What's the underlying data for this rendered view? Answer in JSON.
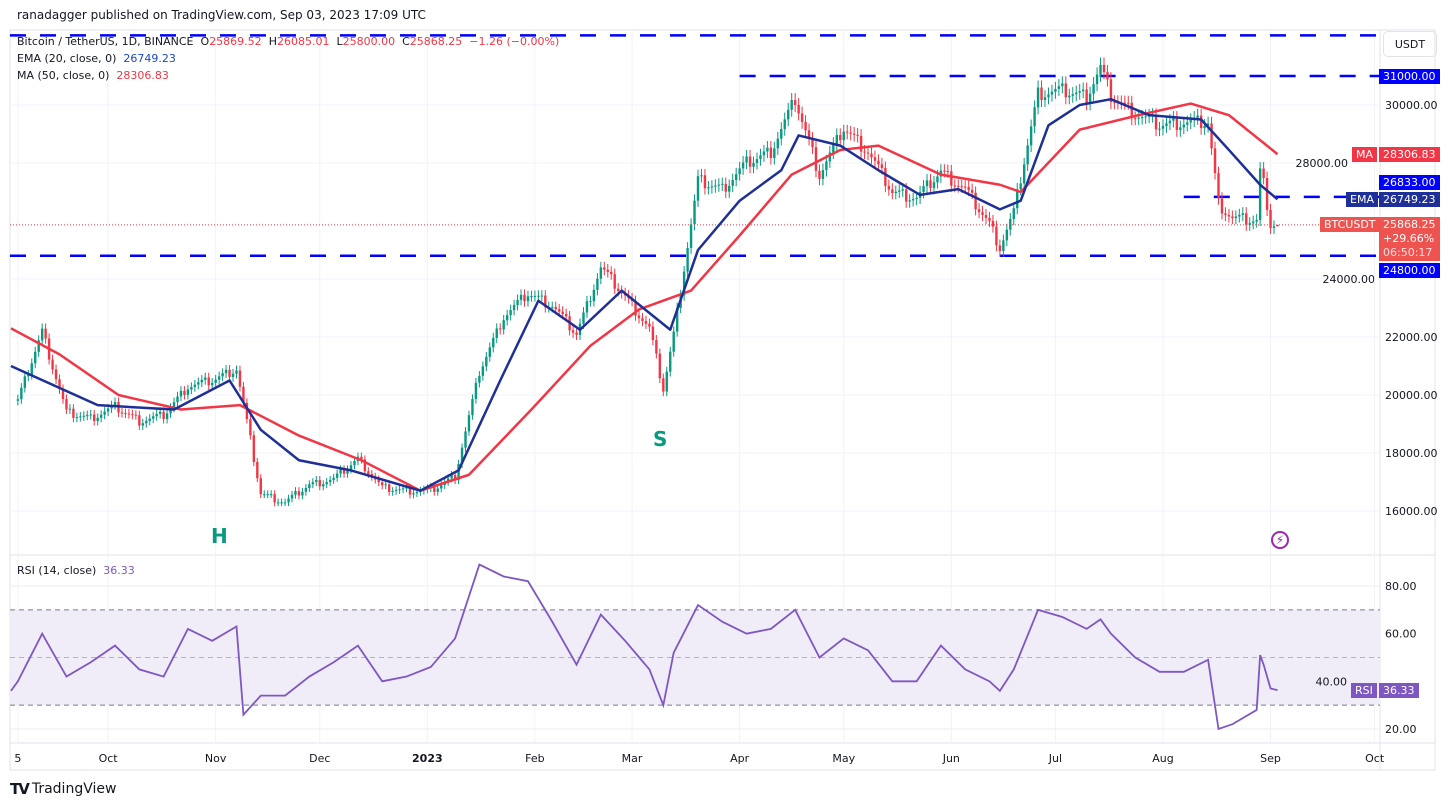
{
  "header": {
    "published": "ranadagger published on TradingView.com, Sep 03, 2023 17:09 UTC"
  },
  "legend": {
    "symbol": "Bitcoin / TetherUS, 1D, BINANCE",
    "o_label": "O",
    "o": "25869.52",
    "h_label": "H",
    "h": "26085.01",
    "l_label": "L",
    "l": "25800.00",
    "c_label": "C",
    "c": "25868.25",
    "change": "−1.26 (−0.00%)",
    "ema_label": "EMA (20, close, 0)",
    "ema": "26749.23",
    "ma_label": "MA (50, close, 0)",
    "ma": "28306.83",
    "rsi_label": "RSI (14, close)",
    "rsi": "36.33"
  },
  "currency": "USDT",
  "tags": {
    "r31000": "31000.00",
    "ma_name": "MA",
    "ma_val": "28306.83",
    "r26833": "26833.00",
    "ema_name": "EMA",
    "ema_val": "26749.23",
    "sym": "BTCUSDT",
    "price": "25868.25",
    "pct": "+29.66%",
    "countdown": "06:50:17",
    "r24800": "24800.00",
    "rsi_name": "RSI",
    "rsi_val": "36.33"
  },
  "annotations": {
    "h": "H",
    "s": "S"
  },
  "footer": {
    "brand": "TradingView"
  },
  "colors": {
    "up": "#089981",
    "down": "#f23645",
    "ema": "#1e2f97",
    "ma": "#f23645",
    "rsi": "#7e57c2",
    "levels": "#0000ff",
    "rsi_band": "#f0ecf8"
  },
  "chart_data": {
    "type": "candlestick",
    "ylim": [
      15000,
      32600
    ],
    "yticks": [
      16000,
      18000,
      20000,
      22000,
      24000,
      28000,
      30000
    ],
    "xticks": [
      {
        "date": "2022-09-05",
        "label": "5"
      },
      {
        "date": "2022-10-01",
        "label": "Oct"
      },
      {
        "date": "2022-11-01",
        "label": "Nov"
      },
      {
        "date": "2022-12-01",
        "label": "Dec"
      },
      {
        "date": "2023-01-01",
        "label": "2023"
      },
      {
        "date": "2023-02-01",
        "label": "Feb"
      },
      {
        "date": "2023-03-01",
        "label": "Mar"
      },
      {
        "date": "2023-04-01",
        "label": "Apr"
      },
      {
        "date": "2023-05-01",
        "label": "May"
      },
      {
        "date": "2023-06-01",
        "label": "Jun"
      },
      {
        "date": "2023-07-01",
        "label": "Jul"
      },
      {
        "date": "2023-08-01",
        "label": "Aug"
      },
      {
        "date": "2023-09-01",
        "label": "Sep"
      },
      {
        "date": "2023-10-01",
        "label": "Oct"
      }
    ],
    "close": [
      [
        "2022-09-05",
        19800
      ],
      [
        "2022-09-12",
        22200
      ],
      [
        "2022-09-19",
        19400
      ],
      [
        "2022-09-26",
        19200
      ],
      [
        "2022-10-03",
        19600
      ],
      [
        "2022-10-10",
        19100
      ],
      [
        "2022-10-17",
        19300
      ],
      [
        "2022-10-24",
        20300
      ],
      [
        "2022-10-31",
        20500
      ],
      [
        "2022-11-07",
        20900
      ],
      [
        "2022-11-14",
        16600
      ],
      [
        "2022-11-21",
        16300
      ],
      [
        "2022-11-28",
        16900
      ],
      [
        "2022-12-05",
        17100
      ],
      [
        "2022-12-12",
        17800
      ],
      [
        "2022-12-19",
        16800
      ],
      [
        "2022-12-26",
        16700
      ],
      [
        "2023-01-02",
        16700
      ],
      [
        "2023-01-09",
        17200
      ],
      [
        "2023-01-16",
        20800
      ],
      [
        "2023-01-23",
        22700
      ],
      [
        "2023-01-30",
        23500
      ],
      [
        "2023-02-06",
        23100
      ],
      [
        "2023-02-13",
        22100
      ],
      [
        "2023-02-20",
        24400
      ],
      [
        "2023-02-27",
        23400
      ],
      [
        "2023-03-06",
        22300
      ],
      [
        "2023-03-10",
        20200
      ],
      [
        "2023-03-13",
        22100
      ],
      [
        "2023-03-20",
        27400
      ],
      [
        "2023-03-27",
        27100
      ],
      [
        "2023-04-03",
        28000
      ],
      [
        "2023-04-10",
        28400
      ],
      [
        "2023-04-17",
        30200
      ],
      [
        "2023-04-24",
        27600
      ],
      [
        "2023-05-01",
        29200
      ],
      [
        "2023-05-08",
        28400
      ],
      [
        "2023-05-15",
        27000
      ],
      [
        "2023-05-22",
        26800
      ],
      [
        "2023-05-29",
        27700
      ],
      [
        "2023-06-05",
        27100
      ],
      [
        "2023-06-12",
        25900
      ],
      [
        "2023-06-15",
        25100
      ],
      [
        "2023-06-19",
        26300
      ],
      [
        "2023-06-26",
        30400
      ],
      [
        "2023-07-03",
        30500
      ],
      [
        "2023-07-10",
        30300
      ],
      [
        "2023-07-14",
        31300
      ],
      [
        "2023-07-17",
        30300
      ],
      [
        "2023-07-24",
        29700
      ],
      [
        "2023-07-31",
        29300
      ],
      [
        "2023-08-07",
        29400
      ],
      [
        "2023-08-14",
        29400
      ],
      [
        "2023-08-17",
        26600
      ],
      [
        "2023-08-21",
        26100
      ],
      [
        "2023-08-28",
        26000
      ],
      [
        "2023-08-29",
        27700
      ],
      [
        "2023-08-30",
        27300
      ],
      [
        "2023-09-01",
        25900
      ],
      [
        "2023-09-03",
        25868.25
      ]
    ],
    "ema20": [
      [
        "2022-09-03",
        21000
      ],
      [
        "2022-09-28",
        19650
      ],
      [
        "2022-10-20",
        19500
      ],
      [
        "2022-11-05",
        20500
      ],
      [
        "2022-11-14",
        18800
      ],
      [
        "2022-11-25",
        17750
      ],
      [
        "2022-12-10",
        17400
      ],
      [
        "2022-12-30",
        16700
      ],
      [
        "2023-01-10",
        17400
      ],
      [
        "2023-01-22",
        20500
      ],
      [
        "2023-02-02",
        23250
      ],
      [
        "2023-02-14",
        22250
      ],
      [
        "2023-02-26",
        23600
      ],
      [
        "2023-03-12",
        22250
      ],
      [
        "2023-03-20",
        25000
      ],
      [
        "2023-04-01",
        26700
      ],
      [
        "2023-04-13",
        27750
      ],
      [
        "2023-04-18",
        28950
      ],
      [
        "2023-04-30",
        28600
      ],
      [
        "2023-05-11",
        27750
      ],
      [
        "2023-05-23",
        26900
      ],
      [
        "2023-06-03",
        27100
      ],
      [
        "2023-06-15",
        26400
      ],
      [
        "2023-06-21",
        26700
      ],
      [
        "2023-06-29",
        29300
      ],
      [
        "2023-07-08",
        30000
      ],
      [
        "2023-07-17",
        30200
      ],
      [
        "2023-07-28",
        29650
      ],
      [
        "2023-08-12",
        29500
      ],
      [
        "2023-08-20",
        28450
      ],
      [
        "2023-08-29",
        27250
      ],
      [
        "2023-09-03",
        26749.23
      ]
    ],
    "ma50": [
      [
        "2022-09-03",
        22300
      ],
      [
        "2022-09-17",
        21400
      ],
      [
        "2022-10-04",
        20000
      ],
      [
        "2022-10-22",
        19500
      ],
      [
        "2022-11-08",
        19650
      ],
      [
        "2022-11-25",
        18600
      ],
      [
        "2022-12-13",
        17750
      ],
      [
        "2022-12-30",
        16700
      ],
      [
        "2023-01-13",
        17250
      ],
      [
        "2023-01-31",
        19500
      ],
      [
        "2023-02-17",
        21700
      ],
      [
        "2023-03-03",
        22950
      ],
      [
        "2023-03-18",
        23600
      ],
      [
        "2023-04-01",
        25500
      ],
      [
        "2023-04-16",
        27600
      ],
      [
        "2023-04-30",
        28450
      ],
      [
        "2023-05-11",
        28600
      ],
      [
        "2023-05-29",
        27600
      ],
      [
        "2023-06-15",
        27250
      ],
      [
        "2023-06-21",
        27000
      ],
      [
        "2023-07-08",
        29150
      ],
      [
        "2023-07-25",
        29650
      ],
      [
        "2023-08-09",
        30050
      ],
      [
        "2023-08-20",
        29650
      ],
      [
        "2023-09-03",
        28306.83
      ]
    ],
    "levels": [
      {
        "value": 32400,
        "from": "2022-09-01"
      },
      {
        "value": 31000,
        "from": "2023-04-01"
      },
      {
        "value": 26833,
        "from": "2023-08-07"
      },
      {
        "value": 24800,
        "from": "2022-09-01"
      }
    ],
    "rsi": {
      "ylim": [
        15,
        92
      ],
      "yticks": [
        20,
        40,
        60,
        80
      ],
      "bands": [
        30,
        50,
        70
      ],
      "values": [
        [
          "2022-09-03",
          36
        ],
        [
          "2022-09-05",
          40
        ],
        [
          "2022-09-12",
          60
        ],
        [
          "2022-09-19",
          42
        ],
        [
          "2022-09-26",
          48
        ],
        [
          "2022-10-03",
          55
        ],
        [
          "2022-10-10",
          45
        ],
        [
          "2022-10-17",
          42
        ],
        [
          "2022-10-24",
          62
        ],
        [
          "2022-10-31",
          57
        ],
        [
          "2022-11-07",
          63
        ],
        [
          "2022-11-09",
          26
        ],
        [
          "2022-11-14",
          34
        ],
        [
          "2022-11-21",
          34
        ],
        [
          "2022-11-28",
          42
        ],
        [
          "2022-12-05",
          48
        ],
        [
          "2022-12-12",
          55
        ],
        [
          "2022-12-19",
          40
        ],
        [
          "2022-12-26",
          42
        ],
        [
          "2023-01-02",
          46
        ],
        [
          "2023-01-09",
          58
        ],
        [
          "2023-01-16",
          89
        ],
        [
          "2023-01-23",
          84
        ],
        [
          "2023-01-30",
          82
        ],
        [
          "2023-02-06",
          65
        ],
        [
          "2023-02-13",
          47
        ],
        [
          "2023-02-20",
          68
        ],
        [
          "2023-02-27",
          57
        ],
        [
          "2023-03-06",
          45
        ],
        [
          "2023-03-10",
          30
        ],
        [
          "2023-03-13",
          52
        ],
        [
          "2023-03-20",
          72
        ],
        [
          "2023-03-27",
          65
        ],
        [
          "2023-04-03",
          60
        ],
        [
          "2023-04-10",
          62
        ],
        [
          "2023-04-17",
          70
        ],
        [
          "2023-04-24",
          50
        ],
        [
          "2023-05-01",
          58
        ],
        [
          "2023-05-08",
          53
        ],
        [
          "2023-05-15",
          40
        ],
        [
          "2023-05-22",
          40
        ],
        [
          "2023-05-29",
          55
        ],
        [
          "2023-06-05",
          45
        ],
        [
          "2023-06-12",
          40
        ],
        [
          "2023-06-15",
          36
        ],
        [
          "2023-06-19",
          45
        ],
        [
          "2023-06-26",
          70
        ],
        [
          "2023-07-03",
          67
        ],
        [
          "2023-07-10",
          62
        ],
        [
          "2023-07-14",
          66
        ],
        [
          "2023-07-17",
          60
        ],
        [
          "2023-07-24",
          50
        ],
        [
          "2023-07-31",
          44
        ],
        [
          "2023-08-07",
          44
        ],
        [
          "2023-08-14",
          49
        ],
        [
          "2023-08-17",
          20
        ],
        [
          "2023-08-21",
          22
        ],
        [
          "2023-08-28",
          28
        ],
        [
          "2023-08-29",
          51
        ],
        [
          "2023-08-30",
          47
        ],
        [
          "2023-09-01",
          37
        ],
        [
          "2023-09-03",
          36.33
        ]
      ]
    }
  }
}
